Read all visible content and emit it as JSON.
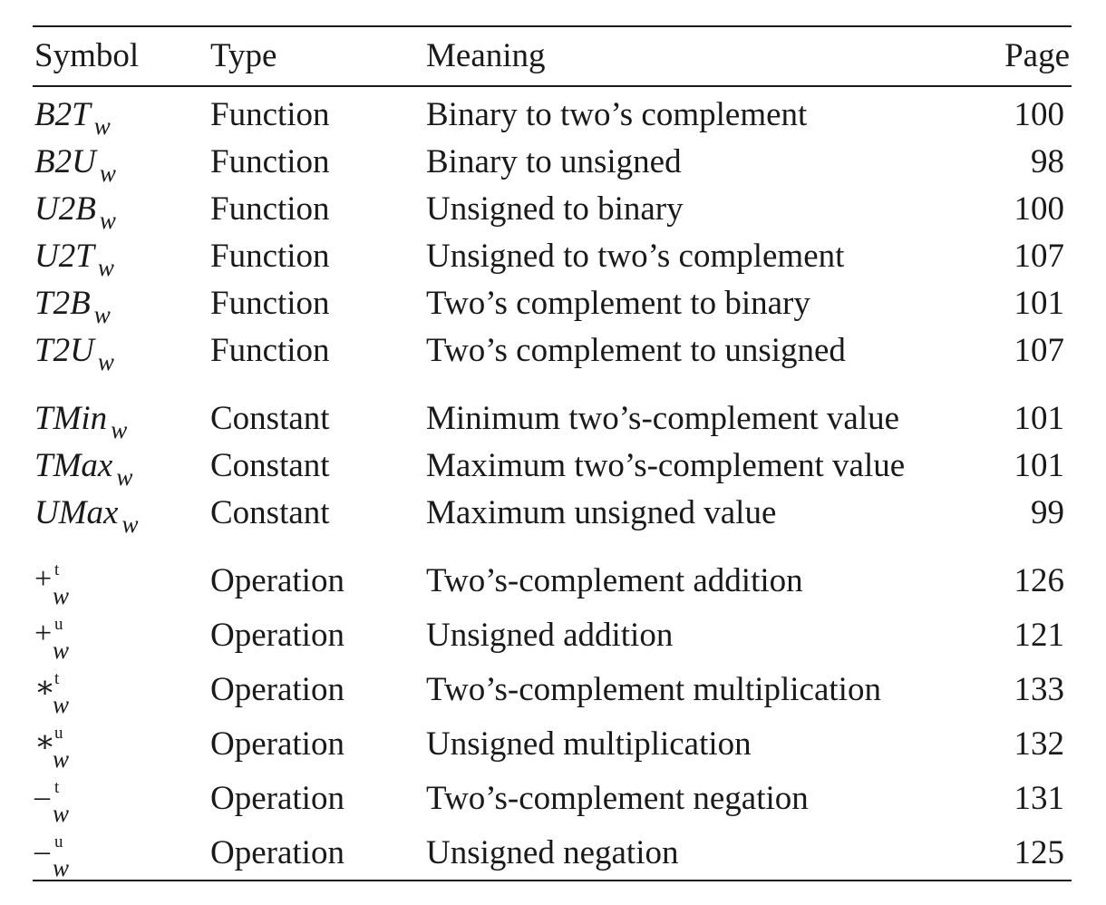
{
  "table": {
    "headers": {
      "symbol": "Symbol",
      "type": "Type",
      "meaning": "Meaning",
      "page": "Page"
    },
    "rows": [
      {
        "kind": "named",
        "name": "B2T",
        "sub": "w",
        "type": "Function",
        "meaning": "Binary to two’s complement",
        "page": "100"
      },
      {
        "kind": "named",
        "name": "B2U",
        "sub": "w",
        "type": "Function",
        "meaning": "Binary to unsigned",
        "page": "98"
      },
      {
        "kind": "named",
        "name": "U2B",
        "sub": "w",
        "type": "Function",
        "meaning": "Unsigned to binary",
        "page": "100"
      },
      {
        "kind": "named",
        "name": "U2T",
        "sub": "w",
        "type": "Function",
        "meaning": "Unsigned to two’s complement",
        "page": "107"
      },
      {
        "kind": "named",
        "name": "T2B",
        "sub": "w",
        "type": "Function",
        "meaning": "Two’s complement to binary",
        "page": "101"
      },
      {
        "kind": "named",
        "name": "T2U",
        "sub": "w",
        "type": "Function",
        "meaning": "Two’s complement to unsigned",
        "page": "107"
      },
      {
        "kind": "named",
        "name": "TMin",
        "sub": "w",
        "type": "Constant",
        "meaning": "Minimum two’s-complement value",
        "page": "101"
      },
      {
        "kind": "named",
        "name": "TMax",
        "sub": "w",
        "type": "Constant",
        "meaning": "Maximum two’s-complement value",
        "page": "101"
      },
      {
        "kind": "named",
        "name": "UMax",
        "sub": "w",
        "type": "Constant",
        "meaning": "Maximum unsigned value",
        "page": "99"
      },
      {
        "kind": "op",
        "glyph": "+",
        "sup": "t",
        "sub": "w",
        "type": "Operation",
        "meaning": "Two’s-complement addition",
        "page": "126"
      },
      {
        "kind": "op",
        "glyph": "+",
        "sup": "u",
        "sub": "w",
        "type": "Operation",
        "meaning": "Unsigned addition",
        "page": "121"
      },
      {
        "kind": "op",
        "glyph": "∗",
        "sup": "t",
        "sub": "w",
        "type": "Operation",
        "meaning": "Two’s-complement multiplication",
        "page": "133"
      },
      {
        "kind": "op",
        "glyph": "∗",
        "sup": "u",
        "sub": "w",
        "type": "Operation",
        "meaning": "Unsigned multiplication",
        "page": "132"
      },
      {
        "kind": "op",
        "glyph": "–",
        "sup": "t",
        "sub": "w",
        "type": "Operation",
        "meaning": "Two’s-complement negation",
        "page": "131"
      },
      {
        "kind": "op",
        "glyph": "–",
        "sup": "u",
        "sub": "w",
        "type": "Operation",
        "meaning": "Unsigned negation",
        "page": "125"
      }
    ]
  }
}
